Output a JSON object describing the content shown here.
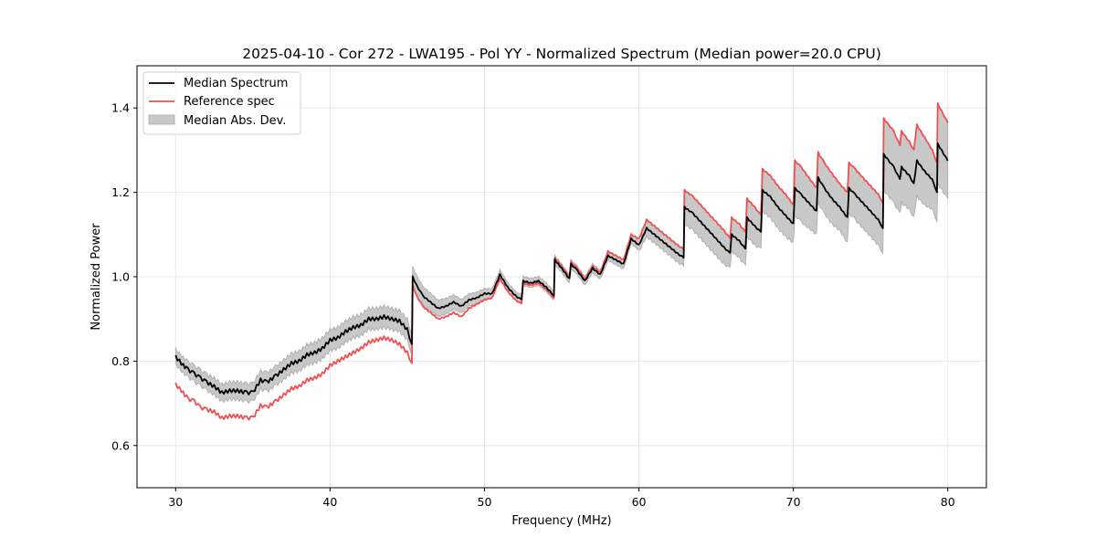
{
  "chart_data": {
    "type": "line",
    "title": "2025-04-10 - Cor 272 - LWA195 - Pol YY - Normalized Spectrum (Median power=20.0 CPU)",
    "xlabel": "Frequency (MHz)",
    "ylabel": "Normalized Power",
    "xlim": [
      27.5,
      82.5
    ],
    "ylim": [
      0.5,
      1.5
    ],
    "xticks": [
      30,
      40,
      50,
      60,
      70,
      80
    ],
    "xtick_labels": [
      "30",
      "40",
      "50",
      "60",
      "70",
      "80"
    ],
    "yticks": [
      0.6,
      0.8,
      1.0,
      1.2,
      1.4
    ],
    "ytick_labels": [
      "0.6",
      "0.8",
      "1.0",
      "1.2",
      "1.4"
    ],
    "grid": true,
    "legend_position": "top-left",
    "legend": [
      {
        "label": "Median Spectrum",
        "kind": "line",
        "color": "#000000"
      },
      {
        "label": "Reference spec",
        "kind": "line",
        "color": "#f05050"
      },
      {
        "label": "Median Abs. Dev.",
        "kind": "band",
        "color": "#c8c8c8"
      }
    ],
    "series": [
      {
        "name": "Median Spectrum",
        "color": "#000000",
        "x": [
          30.0,
          30.5,
          30.8,
          31.2,
          31.6,
          32.0,
          32.5,
          33.0,
          33.5,
          34.0,
          34.6,
          35.0,
          35.5,
          35.9,
          36.5,
          37.0,
          37.5,
          38.0,
          38.5,
          39.0,
          39.5,
          40.0,
          40.5,
          41.0,
          41.5,
          42.0,
          42.5,
          43.0,
          43.5,
          44.0,
          44.5,
          45.0,
          45.3,
          45.35,
          45.6,
          46.0,
          46.5,
          47.0,
          47.5,
          48.0,
          48.5,
          49.0,
          49.5,
          50.0,
          50.5,
          51.0,
          51.5,
          52.0,
          52.4,
          52.5,
          53.0,
          53.5,
          54.0,
          54.5,
          54.55,
          55.0,
          55.5,
          55.6,
          56.0,
          56.5,
          57.0,
          57.5,
          58.0,
          58.5,
          59.0,
          59.5,
          60.0,
          60.5,
          61.0,
          61.5,
          62.0,
          62.5,
          62.9,
          62.95,
          63.5,
          64.0,
          64.5,
          65.0,
          65.5,
          65.9,
          66.0,
          66.5,
          66.9,
          67.0,
          67.5,
          67.9,
          68.0,
          68.5,
          69.0,
          69.5,
          70.0,
          70.1,
          70.5,
          71.0,
          71.5,
          71.6,
          72.0,
          72.5,
          73.0,
          73.5,
          73.6,
          74.0,
          74.5,
          75.0,
          75.5,
          75.8,
          75.85,
          76.5,
          76.9,
          77.0,
          77.5,
          77.8,
          78.0,
          78.5,
          79.0,
          79.3,
          79.35,
          80.0
        ],
        "y": [
          0.81,
          0.79,
          0.78,
          0.77,
          0.76,
          0.75,
          0.74,
          0.725,
          0.73,
          0.73,
          0.725,
          0.725,
          0.755,
          0.75,
          0.765,
          0.78,
          0.795,
          0.8,
          0.815,
          0.82,
          0.83,
          0.85,
          0.855,
          0.87,
          0.88,
          0.885,
          0.9,
          0.9,
          0.905,
          0.9,
          0.895,
          0.875,
          0.84,
          1.0,
          0.98,
          0.955,
          0.94,
          0.925,
          0.93,
          0.94,
          0.93,
          0.945,
          0.95,
          0.96,
          0.96,
          1.005,
          0.975,
          0.955,
          0.945,
          0.99,
          0.985,
          0.99,
          0.975,
          0.955,
          1.04,
          1.02,
          0.995,
          1.03,
          1.015,
          0.99,
          1.02,
          1.005,
          1.05,
          1.04,
          1.03,
          1.09,
          1.075,
          1.115,
          1.1,
          1.085,
          1.07,
          1.055,
          1.045,
          1.165,
          1.15,
          1.13,
          1.11,
          1.09,
          1.07,
          1.055,
          1.1,
          1.085,
          1.065,
          1.14,
          1.12,
          1.105,
          1.205,
          1.19,
          1.165,
          1.145,
          1.125,
          1.21,
          1.195,
          1.175,
          1.155,
          1.235,
          1.21,
          1.185,
          1.165,
          1.14,
          1.21,
          1.195,
          1.175,
          1.155,
          1.135,
          1.115,
          1.29,
          1.26,
          1.23,
          1.26,
          1.24,
          1.22,
          1.275,
          1.25,
          1.23,
          1.2,
          1.315,
          1.275
        ]
      },
      {
        "name": "Reference spec",
        "color": "#f05050",
        "x": [
          30.0,
          30.5,
          30.8,
          31.2,
          31.6,
          32.0,
          32.5,
          33.0,
          33.5,
          34.0,
          34.6,
          35.0,
          35.5,
          35.9,
          36.5,
          37.0,
          37.5,
          38.0,
          38.5,
          39.0,
          39.5,
          40.0,
          40.5,
          41.0,
          41.5,
          42.0,
          42.5,
          43.0,
          43.5,
          44.0,
          44.5,
          45.0,
          45.3,
          45.35,
          45.6,
          46.0,
          46.5,
          47.0,
          47.5,
          48.0,
          48.5,
          49.0,
          49.5,
          50.0,
          50.5,
          51.0,
          51.5,
          52.0,
          52.4,
          52.5,
          53.0,
          53.5,
          54.0,
          54.5,
          54.55,
          55.0,
          55.5,
          55.6,
          56.0,
          56.5,
          57.0,
          57.5,
          58.0,
          58.5,
          59.0,
          59.5,
          60.0,
          60.5,
          61.0,
          61.5,
          62.0,
          62.5,
          62.9,
          62.95,
          63.5,
          64.0,
          64.5,
          65.0,
          65.5,
          65.9,
          66.0,
          66.5,
          66.9,
          67.0,
          67.5,
          67.9,
          68.0,
          68.5,
          69.0,
          69.5,
          70.0,
          70.1,
          70.5,
          71.0,
          71.5,
          71.6,
          72.0,
          72.5,
          73.0,
          73.5,
          73.6,
          74.0,
          74.5,
          75.0,
          75.5,
          75.8,
          75.85,
          76.5,
          76.9,
          77.0,
          77.5,
          77.8,
          78.0,
          78.5,
          79.0,
          79.3,
          79.35,
          80.0
        ],
        "y": [
          0.745,
          0.725,
          0.71,
          0.705,
          0.69,
          0.685,
          0.68,
          0.665,
          0.67,
          0.67,
          0.665,
          0.665,
          0.695,
          0.69,
          0.705,
          0.72,
          0.735,
          0.74,
          0.755,
          0.76,
          0.77,
          0.79,
          0.8,
          0.81,
          0.82,
          0.83,
          0.845,
          0.85,
          0.855,
          0.85,
          0.84,
          0.82,
          0.795,
          0.98,
          0.955,
          0.93,
          0.915,
          0.9,
          0.905,
          0.915,
          0.905,
          0.925,
          0.935,
          0.945,
          0.95,
          0.995,
          0.965,
          0.945,
          0.935,
          0.985,
          0.98,
          0.985,
          0.97,
          0.95,
          1.045,
          1.025,
          1.0,
          1.035,
          1.02,
          0.995,
          1.025,
          1.01,
          1.06,
          1.05,
          1.04,
          1.1,
          1.09,
          1.135,
          1.12,
          1.105,
          1.09,
          1.075,
          1.065,
          1.205,
          1.19,
          1.17,
          1.15,
          1.13,
          1.11,
          1.09,
          1.14,
          1.125,
          1.105,
          1.185,
          1.165,
          1.145,
          1.255,
          1.24,
          1.215,
          1.195,
          1.17,
          1.275,
          1.26,
          1.235,
          1.21,
          1.295,
          1.27,
          1.245,
          1.22,
          1.2,
          1.27,
          1.255,
          1.235,
          1.215,
          1.195,
          1.175,
          1.375,
          1.345,
          1.31,
          1.345,
          1.32,
          1.3,
          1.36,
          1.33,
          1.3,
          1.27,
          1.41,
          1.365
        ]
      }
    ],
    "band": {
      "name": "Median Abs. Dev.",
      "color": "#c8c8c8",
      "half_width_at": {
        "x": [
          30,
          40,
          45,
          50,
          55,
          60,
          65,
          70,
          75,
          80
        ],
        "dev": [
          0.018,
          0.025,
          0.025,
          0.012,
          0.01,
          0.012,
          0.02,
          0.04,
          0.05,
          0.06
        ]
      },
      "upper_follows_reference_above_x": 60
    }
  }
}
